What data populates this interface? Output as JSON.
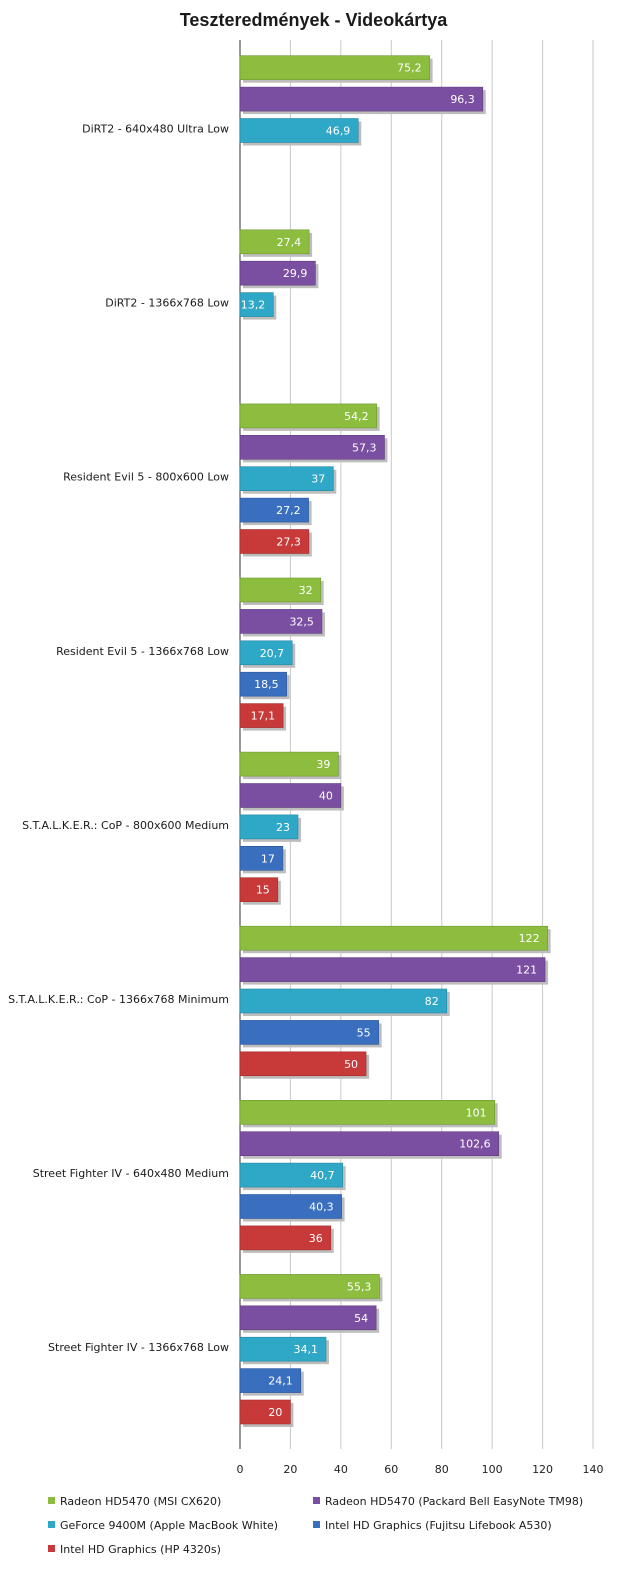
{
  "chart_data": {
    "type": "bar",
    "orientation": "horizontal",
    "title": "Teszteredmények - Videokártya",
    "xlabel": "",
    "ylabel": "",
    "xlim": [
      0,
      140
    ],
    "x_ticks": [
      "0",
      "20",
      "40",
      "60",
      "80",
      "100",
      "120",
      "140"
    ],
    "grid": true,
    "legend_position": "bottom",
    "categories": [
      "DiRT2 - 640x480 Ultra Low",
      "DiRT2 - 1366x768 Low",
      "Resident Evil 5 - 800x600 Low",
      "Resident Evil 5 - 1366x768 Low",
      "S.T.A.L.K.E.R.:  CoP - 800x600 Medium",
      "S.T.A.L.K.E.R.:  CoP - 1366x768 Minimum",
      "Street Fighter IV - 640x480 Medium",
      "Street Fighter IV - 1366x768 Low"
    ],
    "series": [
      {
        "name": "Radeon HD5470 (MSI CX620)",
        "color": "#8cbd3f",
        "values": [
          75.2,
          27.4,
          54.2,
          32,
          39,
          122,
          101,
          55.3
        ],
        "labels": [
          "75,2",
          "27,4",
          "54,2",
          "32",
          "39",
          "122",
          "101",
          "55,3"
        ]
      },
      {
        "name": "Radeon HD5470 (Packard Bell EasyNote  TM98)",
        "color": "#7a4ea0",
        "values": [
          96.3,
          29.9,
          57.3,
          32.5,
          40,
          121,
          102.6,
          54
        ],
        "labels": [
          "96,3",
          "29,9",
          "57,3",
          "32,5",
          "40",
          "121",
          "102,6",
          "54"
        ]
      },
      {
        "name": "GeForce 9400M (Apple MacBook White)",
        "color": "#2fa8c8",
        "values": [
          46.9,
          13.2,
          37,
          20.7,
          23,
          82,
          40.7,
          34.1
        ],
        "labels": [
          "46,9",
          "13,2",
          "37",
          "20,7",
          "23",
          "82",
          "40,7",
          "34,1"
        ]
      },
      {
        "name": "Intel HD Graphics (Fujitsu  Lifebook A530)",
        "color": "#3a6ebf",
        "values": [
          null,
          null,
          27.2,
          18.5,
          17,
          55,
          40.3,
          24.1
        ],
        "labels": [
          "",
          "",
          "27,2",
          "18,5",
          "17",
          "55",
          "40,3",
          "24,1"
        ]
      },
      {
        "name": "Intel HD Graphics (HP 4320s)",
        "color": "#c83a3a",
        "values": [
          null,
          null,
          27.3,
          17.1,
          15,
          50,
          36,
          20
        ],
        "labels": [
          "",
          "",
          "27,3",
          "17,1",
          "15",
          "50",
          "36",
          "20"
        ]
      }
    ]
  }
}
